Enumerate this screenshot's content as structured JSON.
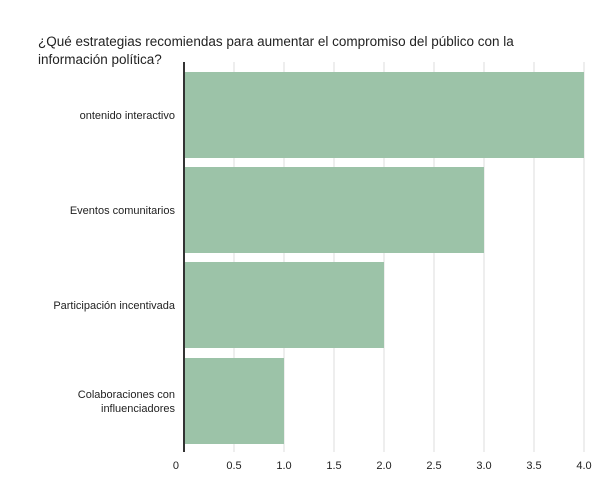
{
  "chart_data": {
    "type": "bar",
    "orientation": "horizontal",
    "title": "¿Qué estrategias recomiendas para aumentar el compromiso del público con la información política?",
    "title_lines": [
      "¿Qué estrategias recomiendas para aumentar el compromiso del público con la",
      "información política?"
    ],
    "categories": [
      [
        "ontenido interactivo"
      ],
      [
        "Eventos comunitarios"
      ],
      [
        "Participación incentivada"
      ],
      [
        "Colaboraciones con",
        "influenciadores"
      ]
    ],
    "values": [
      4.0,
      3.0,
      2.0,
      1.0
    ],
    "xlim": [
      0,
      4.0
    ],
    "xticks": [
      0,
      0.5,
      1.0,
      1.5,
      2.0,
      2.5,
      3.0,
      3.5,
      4.0
    ],
    "xtick_labels": [
      "0",
      "0.5",
      "1.0",
      "1.5",
      "2.0",
      "2.5",
      "3.0",
      "3.5",
      "4.0"
    ],
    "xlabel": "",
    "ylabel": "",
    "grid": true,
    "legend": "none",
    "colors": {
      "bar": "#9cc3a8",
      "grid": "#dddddd",
      "axis": "#333333",
      "text": "#222222",
      "background": "#ffffff"
    }
  }
}
